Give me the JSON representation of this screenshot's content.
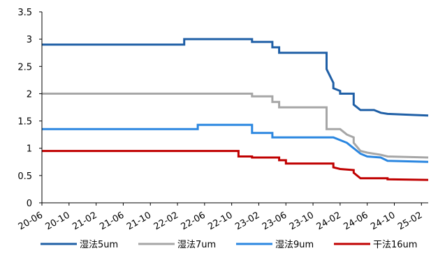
{
  "chart_data": {
    "type": "line",
    "title": "",
    "xlabel": "",
    "ylabel": "",
    "ylim": [
      0,
      3.5
    ],
    "yticks": [
      "0",
      "0.5",
      "1",
      "1.5",
      "2",
      "2.5",
      "3",
      "3.5"
    ],
    "xlim": [
      "2020-06",
      "2025-03"
    ],
    "xticks": [
      "20-06",
      "20-10",
      "21-02",
      "21-06",
      "21-10",
      "22-02",
      "22-06",
      "22-10",
      "23-02",
      "23-06",
      "23-10",
      "24-02",
      "24-06",
      "24-10",
      "25-02"
    ],
    "grid": false,
    "legend": "bottom",
    "series": [
      {
        "name": "湿法5um",
        "color": "#1f5fa6",
        "points": [
          [
            "2020-06",
            2.9
          ],
          [
            "2022-03",
            2.9
          ],
          [
            "2022-03",
            3.0
          ],
          [
            "2023-01",
            3.0
          ],
          [
            "2023-01",
            2.95
          ],
          [
            "2023-04",
            2.95
          ],
          [
            "2023-04",
            2.85
          ],
          [
            "2023-05",
            2.85
          ],
          [
            "2023-05",
            2.75
          ],
          [
            "2023-12",
            2.75
          ],
          [
            "2023-12",
            2.45
          ],
          [
            "2024-01",
            2.2
          ],
          [
            "2024-01",
            2.1
          ],
          [
            "2024-02",
            2.05
          ],
          [
            "2024-02",
            2.0
          ],
          [
            "2024-04",
            2.0
          ],
          [
            "2024-04",
            1.8
          ],
          [
            "2024-05",
            1.7
          ],
          [
            "2024-07",
            1.7
          ],
          [
            "2024-08",
            1.65
          ],
          [
            "2024-09",
            1.63
          ],
          [
            "2025-01",
            1.61
          ],
          [
            "2025-03",
            1.6
          ]
        ]
      },
      {
        "name": "湿法7um",
        "color": "#a6a6a6",
        "points": [
          [
            "2020-06",
            2.0
          ],
          [
            "2023-01",
            2.0
          ],
          [
            "2023-01",
            1.95
          ],
          [
            "2023-04",
            1.95
          ],
          [
            "2023-04",
            1.85
          ],
          [
            "2023-05",
            1.85
          ],
          [
            "2023-05",
            1.75
          ],
          [
            "2023-12",
            1.75
          ],
          [
            "2023-12",
            1.35
          ],
          [
            "2024-02",
            1.35
          ],
          [
            "2024-03",
            1.25
          ],
          [
            "2024-04",
            1.2
          ],
          [
            "2024-04",
            1.1
          ],
          [
            "2024-05",
            0.95
          ],
          [
            "2024-06",
            0.92
          ],
          [
            "2024-08",
            0.88
          ],
          [
            "2024-09",
            0.85
          ],
          [
            "2025-03",
            0.83
          ]
        ]
      },
      {
        "name": "湿法9um",
        "color": "#2a86e0",
        "points": [
          [
            "2020-06",
            1.35
          ],
          [
            "2022-05",
            1.35
          ],
          [
            "2022-05",
            1.43
          ],
          [
            "2023-01",
            1.43
          ],
          [
            "2023-01",
            1.28
          ],
          [
            "2023-04",
            1.28
          ],
          [
            "2023-04",
            1.2
          ],
          [
            "2024-01",
            1.2
          ],
          [
            "2024-02",
            1.15
          ],
          [
            "2024-03",
            1.1
          ],
          [
            "2024-04",
            1.0
          ],
          [
            "2024-05",
            0.9
          ],
          [
            "2024-06",
            0.85
          ],
          [
            "2024-08",
            0.83
          ],
          [
            "2024-09",
            0.77
          ],
          [
            "2025-03",
            0.75
          ]
        ]
      },
      {
        "name": "干法16um",
        "color": "#c00000",
        "points": [
          [
            "2020-06",
            0.95
          ],
          [
            "2022-11",
            0.95
          ],
          [
            "2022-11",
            0.85
          ],
          [
            "2023-01",
            0.85
          ],
          [
            "2023-01",
            0.83
          ],
          [
            "2023-05",
            0.83
          ],
          [
            "2023-05",
            0.78
          ],
          [
            "2023-06",
            0.78
          ],
          [
            "2023-06",
            0.72
          ],
          [
            "2024-01",
            0.72
          ],
          [
            "2024-01",
            0.65
          ],
          [
            "2024-02",
            0.62
          ],
          [
            "2024-04",
            0.6
          ],
          [
            "2024-04",
            0.55
          ],
          [
            "2024-05",
            0.45
          ],
          [
            "2024-09",
            0.45
          ],
          [
            "2024-09",
            0.43
          ],
          [
            "2025-03",
            0.42
          ]
        ]
      }
    ]
  }
}
